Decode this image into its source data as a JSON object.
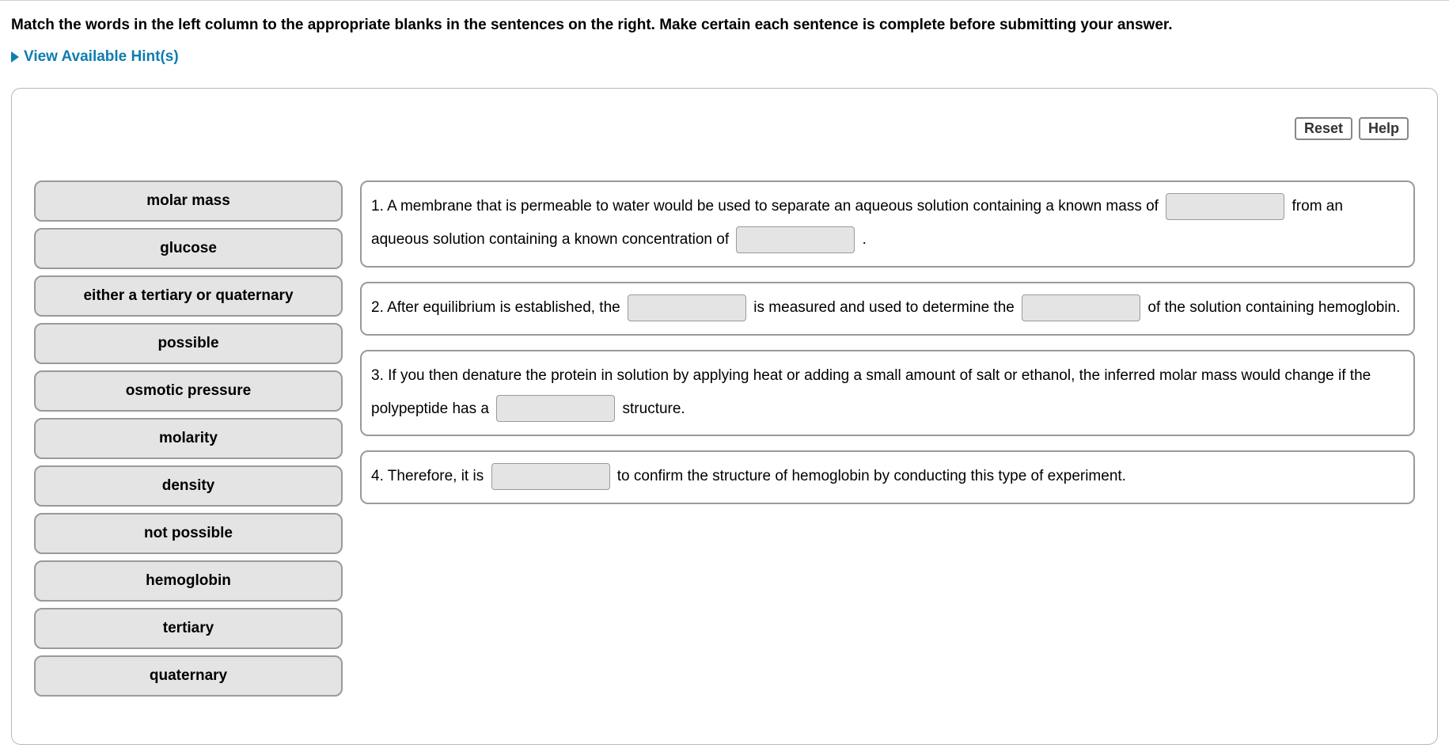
{
  "instruction": "Match the words in the left column to the appropriate blanks in the sentences on the right. Make certain each sentence is complete before submitting your answer.",
  "hints_label": "View Available Hint(s)",
  "toolbar": {
    "reset_label": "Reset",
    "help_label": "Help"
  },
  "words": [
    "molar mass",
    "glucose",
    "either a tertiary or quaternary",
    "possible",
    "osmotic pressure",
    "molarity",
    "density",
    "not possible",
    "hemoglobin",
    "tertiary",
    "quaternary"
  ],
  "sentences": {
    "s1": {
      "p1": "1. A membrane that is permeable to water would be used to separate an aqueous solution containing a known mass of",
      "p2": "from an aqueous solution containing a known concentration of",
      "p3": "."
    },
    "s2": {
      "p1": "2. After equilibrium is established, the",
      "p2": "is measured and used to determine the",
      "p3": "of the solution containing hemoglobin."
    },
    "s3": {
      "p1": "3. If you then denature the protein in solution by applying heat or adding a small amount of salt or ethanol, the inferred molar mass would change if the polypeptide has a",
      "p2": "structure."
    },
    "s4": {
      "p1": "4. Therefore, it is",
      "p2": "to confirm the structure of hemoglobin by conducting this type of experiment."
    }
  },
  "colors": {
    "link": "#0d7db0",
    "tile_bg": "#e4e4e4",
    "tile_border": "#9a9a9a",
    "box_border": "#b8b8b8"
  }
}
